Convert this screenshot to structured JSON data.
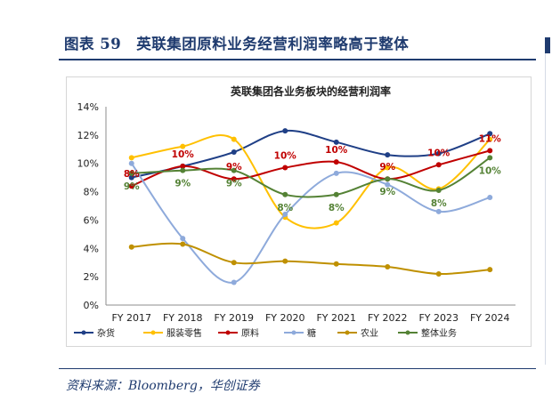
{
  "figure": {
    "title": "图表 59　英联集团原料业务经营利润率略高于整体",
    "source": "资料来源：Bloomberg，华创证券"
  },
  "chart_data": {
    "type": "line",
    "title": "英联集团各业务板块的经营利润率",
    "categories": [
      "FY 2017",
      "FY 2018",
      "FY 2019",
      "FY 2020",
      "FY 2021",
      "FY 2022",
      "FY 2023",
      "FY 2024"
    ],
    "y_ticks": [
      "0%",
      "2%",
      "4%",
      "6%",
      "8%",
      "10%",
      "12%",
      "14%"
    ],
    "ylim": [
      0,
      14
    ],
    "y_unit": "%",
    "grid": false,
    "legend_position": "bottom",
    "series": [
      {
        "name": "杂货",
        "color": "#1f3f86",
        "values": [
          9.0,
          9.8,
          10.8,
          12.3,
          11.5,
          10.6,
          10.7,
          12.1
        ],
        "labels": []
      },
      {
        "name": "服装零售",
        "color": "#ffc000",
        "values": [
          10.4,
          11.2,
          11.7,
          6.2,
          5.8,
          9.7,
          8.2,
          11.7
        ],
        "labels": []
      },
      {
        "name": "原料",
        "color": "#c00000",
        "values": [
          8.4,
          9.8,
          8.9,
          9.7,
          10.1,
          8.9,
          9.9,
          10.9
        ],
        "labels": [
          "8%",
          "10%",
          "9%",
          "10%",
          "10%",
          "9%",
          "10%",
          "11%"
        ]
      },
      {
        "name": "糖",
        "color": "#8eaadb",
        "values": [
          10.0,
          4.7,
          1.6,
          6.4,
          9.3,
          8.5,
          6.6,
          7.6
        ],
        "labels": []
      },
      {
        "name": "农业",
        "color": "#bf9000",
        "values": [
          4.1,
          4.3,
          3.0,
          3.1,
          2.9,
          2.7,
          2.2,
          2.5
        ],
        "labels": []
      },
      {
        "name": "整体业务",
        "color": "#548235",
        "values": [
          9.3,
          9.5,
          9.5,
          7.8,
          7.8,
          8.9,
          8.1,
          10.4
        ],
        "labels": [
          "9%",
          "9%",
          "9%",
          "8%",
          "8%",
          "9%",
          "8%",
          "10%"
        ]
      }
    ]
  }
}
